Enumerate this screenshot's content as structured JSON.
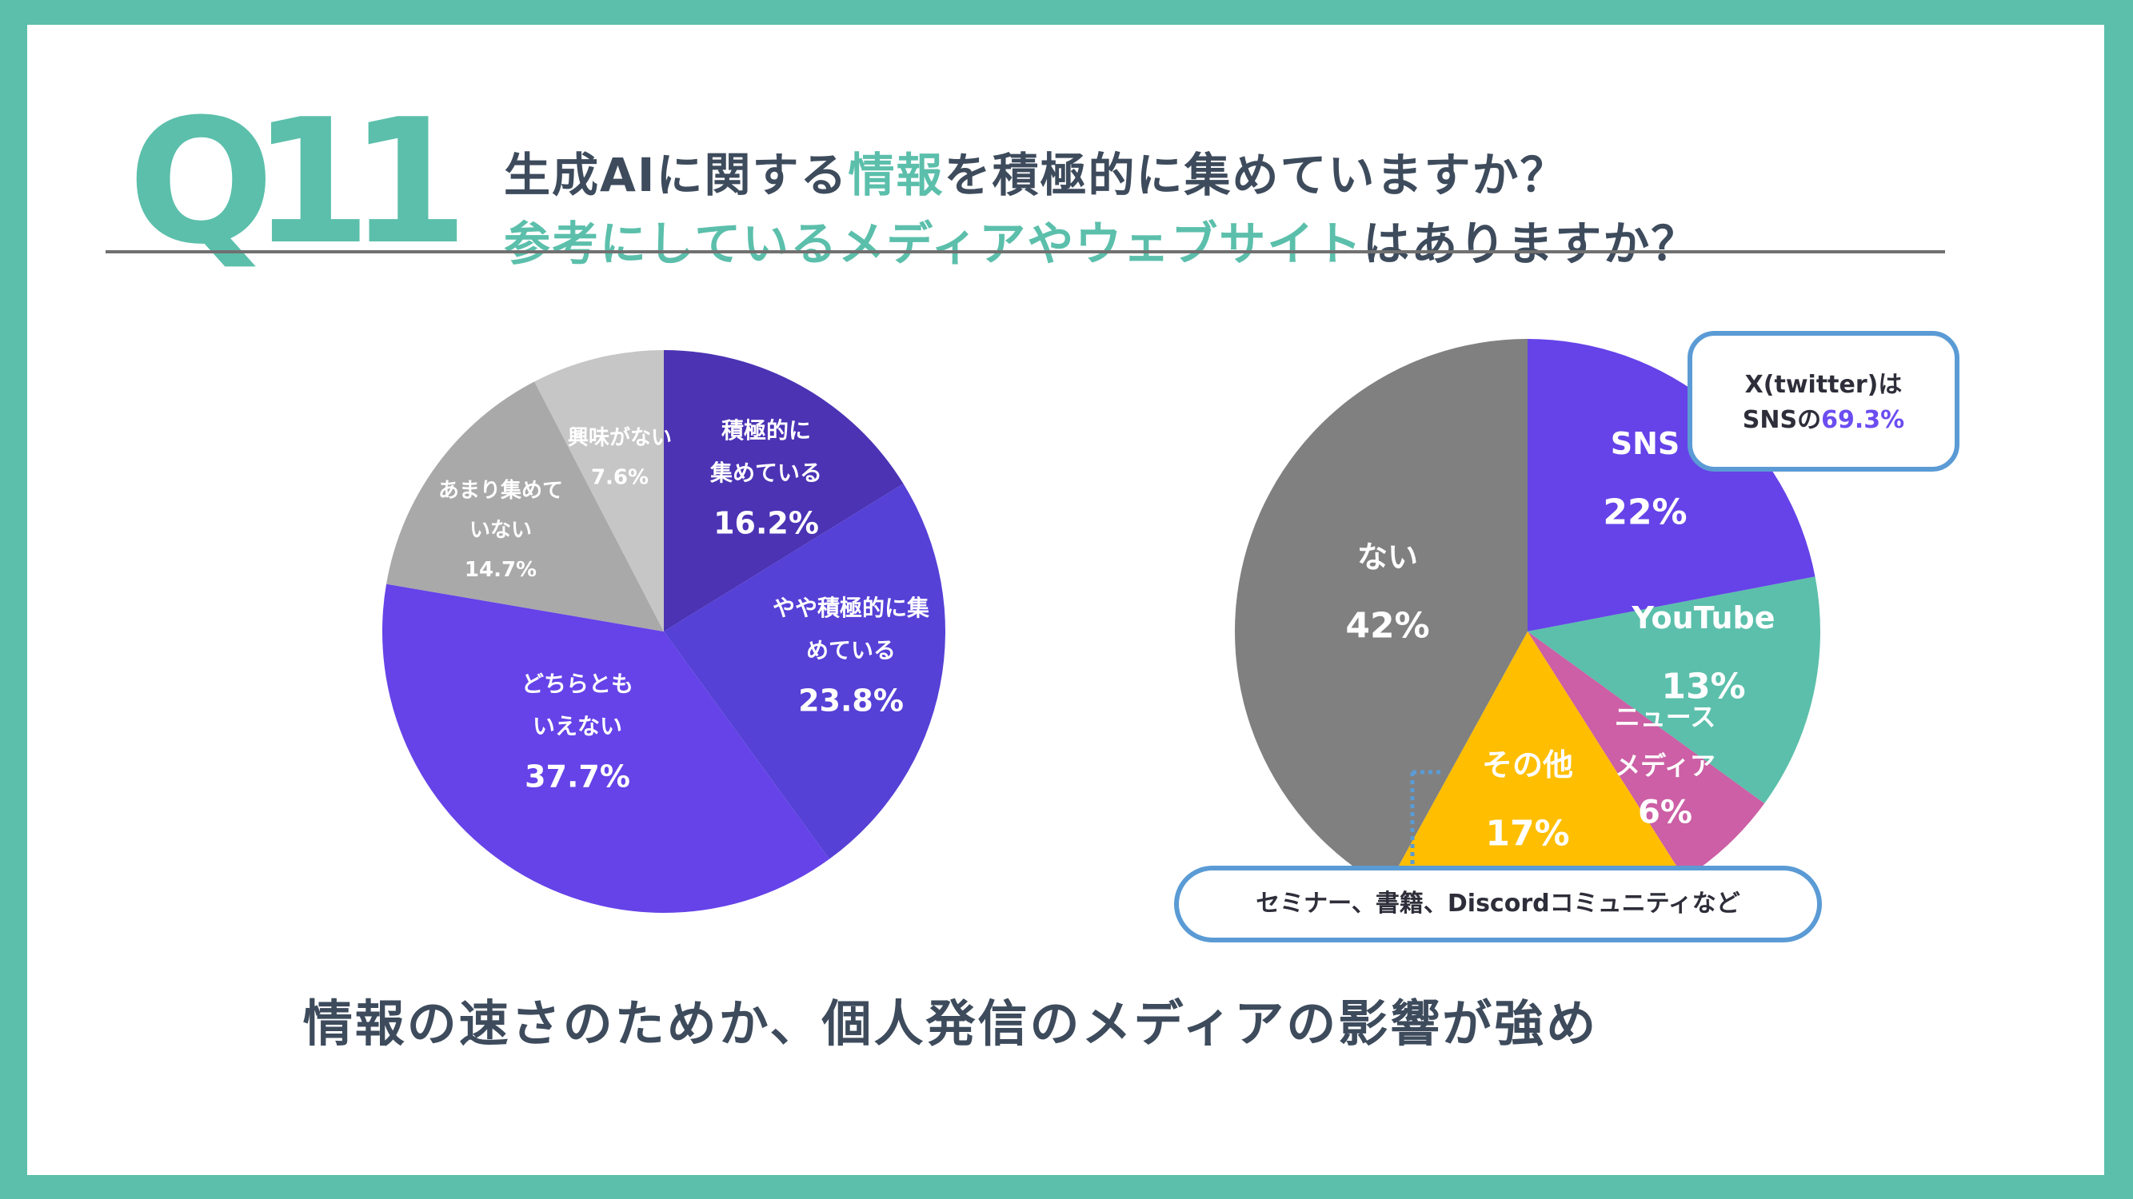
{
  "header": {
    "question_number": "Q11",
    "line1_pre": "生成AIに関する",
    "line1_accent": "情報",
    "line1_post": "を積極的に集めていますか？",
    "line2_accent": "参考にしているメディアやウェブサイト",
    "line2_post": "はありますか？"
  },
  "colors": {
    "teal": "#5bbfab",
    "text": "#3d4b5c",
    "purple_dark": "#4b33b4",
    "purple_mid": "#5541d6",
    "purple_light": "#6543e8",
    "gray_mid": "#a9a9a9",
    "gray_light": "#c6c6c6",
    "blue_outline": "#5b9bd5"
  },
  "chart_data": [
    {
      "type": "pie",
      "title": "",
      "slices": [
        {
          "label_lines": [
            "積極的に",
            "集めている"
          ],
          "value": 16.2,
          "display": "16.2%",
          "color": "#4b33b4"
        },
        {
          "label_lines": [
            "やや積極的に集",
            "めている"
          ],
          "value": 23.8,
          "display": "23.8%",
          "color": "#5541d6"
        },
        {
          "label_lines": [
            "どちらとも",
            "いえない"
          ],
          "value": 37.7,
          "display": "37.7%",
          "color": "#6543e8"
        },
        {
          "label_lines": [
            "あまり集めて",
            "いない"
          ],
          "value": 14.7,
          "display": "14.7%",
          "color": "#a9a9a9"
        },
        {
          "label_lines": [
            "興味がない"
          ],
          "value": 7.6,
          "display": "7.6%",
          "color": "#c6c6c6"
        }
      ]
    },
    {
      "type": "pie",
      "title": "",
      "slices": [
        {
          "label_lines": [
            "SNS"
          ],
          "value": 22,
          "display": "22%",
          "color": "#6543e8"
        },
        {
          "label_lines": [
            "YouTube"
          ],
          "value": 13,
          "display": "13%",
          "color": "#5bbfab"
        },
        {
          "label_lines": [
            "ニュース",
            "メディア"
          ],
          "value": 6,
          "display": "6%",
          "color": "#cc5fa5"
        },
        {
          "label_lines": [
            "その他"
          ],
          "value": 17,
          "display": "17%",
          "color": "#ffbe00"
        },
        {
          "label_lines": [
            "ない"
          ],
          "value": 42,
          "display": "42%",
          "color": "#808080"
        }
      ]
    }
  ],
  "callouts": {
    "x_line1": "X(twitter)は",
    "x_line2_pre": "SNSの",
    "x_line2_pct": "69.3%",
    "other": "セミナー、書籍、Discordコミュニティなど"
  },
  "footer": "情報の速さのためか、個人発信のメディアの影響が強め"
}
